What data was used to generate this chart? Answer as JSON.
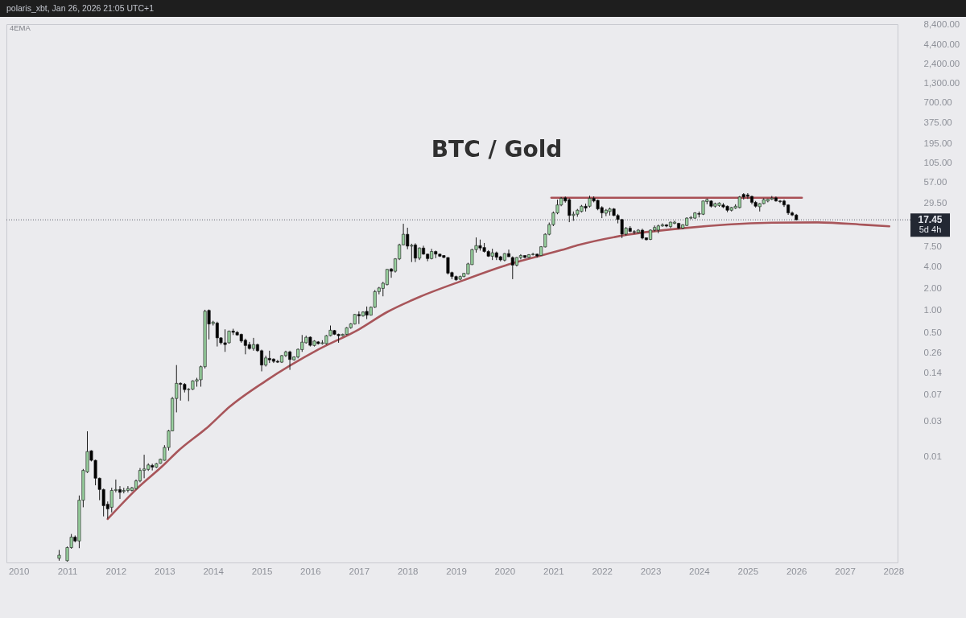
{
  "chart_data": {
    "type": "candlestick",
    "title": "BTC / Gold",
    "annotations": [
      "polaris_xbt, Jan 26, 2026 21:05 UTC+1",
      "4EMA",
      "5d 4h"
    ],
    "x": [
      "2010-11",
      "2011-01",
      "2011-02",
      "2011-03",
      "2011-04",
      "2011-05",
      "2011-06",
      "2011-07",
      "2011-08",
      "2011-09",
      "2011-10",
      "2011-11",
      "2011-12",
      "2012-01",
      "2012-02",
      "2012-03",
      "2012-04",
      "2012-05",
      "2012-06",
      "2012-07",
      "2012-08",
      "2012-09",
      "2012-10",
      "2012-11",
      "2012-12",
      "2013-01",
      "2013-02",
      "2013-03",
      "2013-04",
      "2013-05",
      "2013-06",
      "2013-07",
      "2013-08",
      "2013-09",
      "2013-10",
      "2013-11",
      "2013-12",
      "2014-01",
      "2014-02",
      "2014-03",
      "2014-04",
      "2014-05",
      "2014-06",
      "2014-07",
      "2014-08",
      "2014-09",
      "2014-10",
      "2014-11",
      "2014-12",
      "2015-01",
      "2015-02",
      "2015-03",
      "2015-04",
      "2015-05",
      "2015-06",
      "2015-07",
      "2015-08",
      "2015-09",
      "2015-10",
      "2015-11",
      "2015-12",
      "2016-01",
      "2016-02",
      "2016-03",
      "2016-04",
      "2016-05",
      "2016-06",
      "2016-07",
      "2016-08",
      "2016-09",
      "2016-10",
      "2016-11",
      "2016-12",
      "2017-01",
      "2017-02",
      "2017-03",
      "2017-04",
      "2017-05",
      "2017-06",
      "2017-07",
      "2017-08",
      "2017-09",
      "2017-10",
      "2017-11",
      "2017-12",
      "2018-01",
      "2018-02",
      "2018-03",
      "2018-04",
      "2018-05",
      "2018-06",
      "2018-07",
      "2018-08",
      "2018-09",
      "2018-10",
      "2018-11",
      "2018-12",
      "2019-01",
      "2019-02",
      "2019-03",
      "2019-04",
      "2019-05",
      "2019-06",
      "2019-07",
      "2019-08",
      "2019-09",
      "2019-10",
      "2019-11",
      "2019-12",
      "2020-01",
      "2020-02",
      "2020-03",
      "2020-04",
      "2020-05",
      "2020-06",
      "2020-07",
      "2020-08",
      "2020-09",
      "2020-10",
      "2020-11",
      "2020-12",
      "2021-01",
      "2021-02",
      "2021-03",
      "2021-04",
      "2021-05",
      "2021-06",
      "2021-07",
      "2021-08",
      "2021-09",
      "2021-10",
      "2021-11",
      "2021-12",
      "2022-01",
      "2022-02",
      "2022-03",
      "2022-04",
      "2022-05",
      "2022-06",
      "2022-07",
      "2022-08",
      "2022-09",
      "2022-10",
      "2022-11",
      "2022-12",
      "2023-01",
      "2023-02",
      "2023-03",
      "2023-04",
      "2023-05",
      "2023-06",
      "2023-07",
      "2023-08",
      "2023-09",
      "2023-10",
      "2023-11",
      "2023-12",
      "2024-01",
      "2024-02",
      "2024-03",
      "2024-04",
      "2024-05",
      "2024-06",
      "2024-07",
      "2024-08",
      "2024-09",
      "2024-10",
      "2024-11",
      "2024-12",
      "2025-01",
      "2025-02",
      "2025-03",
      "2025-04",
      "2025-05",
      "2025-06",
      "2025-07",
      "2025-08",
      "2025-09",
      "2025-10",
      "2025-11",
      "2025-12",
      "2026-01"
    ],
    "ohlc": [
      [
        0.0004,
        0.00052,
        0.00037,
        0.00044
      ],
      [
        0.00037,
        0.00058,
        0.00036,
        0.00056
      ],
      [
        0.00056,
        0.00086,
        0.00054,
        0.00078
      ],
      [
        0.00078,
        0.00082,
        0.00066,
        0.00069
      ],
      [
        0.00069,
        0.0029,
        0.00055,
        0.0025
      ],
      [
        0.0025,
        0.0067,
        0.002,
        0.0064
      ],
      [
        0.0061,
        0.022,
        0.0059,
        0.0116
      ],
      [
        0.0119,
        0.0121,
        0.0085,
        0.0088
      ],
      [
        0.0088,
        0.009,
        0.004,
        0.005
      ],
      [
        0.005,
        0.0051,
        0.0025,
        0.0035
      ],
      [
        0.0035,
        0.0036,
        0.0015,
        0.0021
      ],
      [
        0.0022,
        0.0024,
        0.0014,
        0.0019
      ],
      [
        0.002,
        0.0037,
        0.0017,
        0.0034
      ],
      [
        0.0034,
        0.0048,
        0.0032,
        0.0035
      ],
      [
        0.0035,
        0.0039,
        0.0026,
        0.0032
      ],
      [
        0.0033,
        0.0037,
        0.0031,
        0.0034
      ],
      [
        0.0034,
        0.0039,
        0.0032,
        0.0036
      ],
      [
        0.0034,
        0.0038,
        0.0033,
        0.0037
      ],
      [
        0.0036,
        0.0048,
        0.0035,
        0.0046
      ],
      [
        0.0046,
        0.0069,
        0.0044,
        0.0064
      ],
      [
        0.0064,
        0.0105,
        0.005,
        0.0067
      ],
      [
        0.0066,
        0.008,
        0.0063,
        0.0076
      ],
      [
        0.0075,
        0.0079,
        0.0064,
        0.0071
      ],
      [
        0.0071,
        0.0081,
        0.0069,
        0.0079
      ],
      [
        0.008,
        0.0093,
        0.0079,
        0.0091
      ],
      [
        0.0088,
        0.0142,
        0.0087,
        0.0132
      ],
      [
        0.0132,
        0.023,
        0.012,
        0.0223
      ],
      [
        0.0223,
        0.065,
        0.022,
        0.062
      ],
      [
        0.062,
        0.178,
        0.04,
        0.1
      ],
      [
        0.1,
        0.103,
        0.058,
        0.097
      ],
      [
        0.097,
        0.101,
        0.075,
        0.082
      ],
      [
        0.082,
        0.086,
        0.057,
        0.083
      ],
      [
        0.083,
        0.11,
        0.081,
        0.108
      ],
      [
        0.107,
        0.119,
        0.09,
        0.112
      ],
      [
        0.112,
        0.175,
        0.09,
        0.169
      ],
      [
        0.169,
        1.02,
        0.16,
        0.975
      ],
      [
        1.0,
        1.03,
        0.4,
        0.65
      ],
      [
        0.66,
        0.72,
        0.62,
        0.69
      ],
      [
        0.67,
        0.7,
        0.32,
        0.42
      ],
      [
        0.42,
        0.43,
        0.34,
        0.36
      ],
      [
        0.36,
        0.55,
        0.27,
        0.34
      ],
      [
        0.36,
        0.53,
        0.35,
        0.52
      ],
      [
        0.52,
        0.56,
        0.46,
        0.5
      ],
      [
        0.5,
        0.52,
        0.45,
        0.46
      ],
      [
        0.47,
        0.48,
        0.36,
        0.38
      ],
      [
        0.39,
        0.41,
        0.25,
        0.33
      ],
      [
        0.34,
        0.37,
        0.29,
        0.3
      ],
      [
        0.3,
        0.42,
        0.28,
        0.34
      ],
      [
        0.34,
        0.35,
        0.27,
        0.28
      ],
      [
        0.28,
        0.29,
        0.146,
        0.178
      ],
      [
        0.178,
        0.24,
        0.17,
        0.223
      ],
      [
        0.22,
        0.28,
        0.19,
        0.21
      ],
      [
        0.215,
        0.22,
        0.19,
        0.2
      ],
      [
        0.2,
        0.21,
        0.19,
        0.195
      ],
      [
        0.195,
        0.245,
        0.19,
        0.24
      ],
      [
        0.24,
        0.28,
        0.23,
        0.27
      ],
      [
        0.27,
        0.28,
        0.153,
        0.212
      ],
      [
        0.21,
        0.235,
        0.205,
        0.23
      ],
      [
        0.23,
        0.3,
        0.22,
        0.293
      ],
      [
        0.29,
        0.46,
        0.27,
        0.367
      ],
      [
        0.36,
        0.45,
        0.35,
        0.427
      ],
      [
        0.43,
        0.44,
        0.32,
        0.332
      ],
      [
        0.33,
        0.39,
        0.32,
        0.38
      ],
      [
        0.37,
        0.38,
        0.34,
        0.35
      ],
      [
        0.35,
        0.39,
        0.34,
        0.36
      ],
      [
        0.35,
        0.46,
        0.34,
        0.449
      ],
      [
        0.45,
        0.62,
        0.44,
        0.535
      ],
      [
        0.53,
        0.54,
        0.46,
        0.47
      ],
      [
        0.47,
        0.48,
        0.36,
        0.45
      ],
      [
        0.45,
        0.48,
        0.44,
        0.47
      ],
      [
        0.47,
        0.59,
        0.46,
        0.577
      ],
      [
        0.58,
        0.67,
        0.56,
        0.653
      ],
      [
        0.65,
        0.89,
        0.64,
        0.882
      ],
      [
        0.88,
        0.97,
        0.65,
        0.84
      ],
      [
        0.84,
        0.97,
        0.82,
        0.95
      ],
      [
        0.97,
        1.13,
        0.76,
        0.86
      ],
      [
        0.86,
        1.13,
        0.85,
        1.105
      ],
      [
        1.105,
        1.9,
        1.08,
        1.81
      ],
      [
        1.81,
        2.1,
        1.66,
        2.03
      ],
      [
        2.0,
        2.46,
        1.56,
        2.36
      ],
      [
        2.26,
        3.7,
        2.2,
        3.65
      ],
      [
        3.7,
        3.8,
        2.8,
        3.44
      ],
      [
        3.44,
        5.2,
        3.3,
        5.09
      ],
      [
        5.09,
        8.2,
        4.9,
        7.92
      ],
      [
        7.92,
        15.4,
        7.8,
        11.05
      ],
      [
        11.05,
        13.6,
        6.9,
        7.6
      ],
      [
        7.6,
        8.2,
        4.6,
        7.8
      ],
      [
        7.9,
        8.3,
        4.6,
        5.2
      ],
      [
        5.2,
        7.3,
        4.9,
        7.16
      ],
      [
        7.16,
        7.7,
        5.8,
        5.91
      ],
      [
        5.91,
        6.0,
        4.72,
        5.13
      ],
      [
        5.13,
        6.99,
        5.0,
        6.42
      ],
      [
        6.42,
        6.6,
        5.2,
        5.91
      ],
      [
        5.91,
        6.0,
        5.4,
        5.53
      ],
      [
        5.66,
        5.7,
        5.2,
        5.31
      ],
      [
        5.31,
        5.35,
        3.1,
        3.24
      ],
      [
        3.3,
        3.4,
        2.68,
        2.91
      ],
      [
        2.91,
        3.0,
        2.55,
        2.63
      ],
      [
        2.68,
        3.0,
        2.6,
        2.91
      ],
      [
        2.91,
        3.25,
        2.85,
        3.22
      ],
      [
        3.16,
        4.5,
        3.1,
        4.34
      ],
      [
        4.24,
        6.99,
        4.2,
        6.81
      ],
      [
        6.81,
        10.0,
        6.2,
        7.73
      ],
      [
        7.73,
        9.35,
        6.6,
        7.16
      ],
      [
        7.28,
        8.4,
        6.2,
        6.42
      ],
      [
        6.42,
        6.7,
        5.4,
        5.53
      ],
      [
        5.53,
        7.0,
        4.9,
        6.16
      ],
      [
        6.16,
        6.4,
        4.9,
        5.35
      ],
      [
        5.44,
        5.6,
        4.7,
        4.92
      ],
      [
        4.88,
        6.1,
        4.7,
        6.01
      ],
      [
        6.01,
        6.81,
        5.4,
        5.44
      ],
      [
        5.31,
        5.5,
        2.68,
        4.17
      ],
      [
        4.17,
        5.4,
        4.0,
        5.31
      ],
      [
        5.31,
        5.9,
        5.0,
        5.66
      ],
      [
        5.66,
        5.7,
        5.2,
        5.31
      ],
      [
        5.31,
        5.9,
        5.2,
        5.81
      ],
      [
        5.81,
        6.16,
        5.66,
        5.91
      ],
      [
        5.91,
        6.0,
        5.3,
        5.57
      ],
      [
        5.66,
        7.6,
        5.6,
        7.46
      ],
      [
        7.41,
        11.4,
        7.3,
        11.05
      ],
      [
        11.05,
        16.0,
        10.7,
        15.0
      ],
      [
        15.0,
        22.7,
        14.3,
        21.7
      ],
      [
        21.7,
        33.0,
        20.8,
        27.9
      ],
      [
        27.9,
        35.8,
        26.8,
        34.4
      ],
      [
        34.9,
        36.4,
        30.0,
        31.6
      ],
      [
        33.0,
        34.4,
        16.2,
        20.0
      ],
      [
        20.0,
        22.7,
        16.9,
        20.8
      ],
      [
        20.8,
        24.6,
        19.2,
        23.6
      ],
      [
        22.7,
        27.9,
        22.0,
        26.8
      ],
      [
        26.8,
        29.1,
        22.7,
        25.3
      ],
      [
        26.8,
        37.4,
        25.7,
        34.4
      ],
      [
        34.4,
        36.6,
        30.3,
        31.6
      ],
      [
        32.3,
        33.0,
        23.6,
        24.6
      ],
      [
        25.7,
        26.8,
        18.4,
        21.7
      ],
      [
        21.5,
        24.6,
        19.6,
        23.6
      ],
      [
        22.7,
        25.7,
        20.0,
        24.6
      ],
      [
        24.6,
        25.3,
        19.6,
        20.0
      ],
      [
        20.0,
        21.0,
        15.6,
        17.6
      ],
      [
        17.6,
        18.0,
        9.8,
        11.1
      ],
      [
        11.1,
        13.9,
        10.6,
        13.4
      ],
      [
        13.4,
        14.3,
        11.8,
        12.1
      ],
      [
        12.0,
        12.6,
        11.1,
        11.9
      ],
      [
        11.7,
        13.0,
        11.4,
        12.6
      ],
      [
        12.6,
        13.2,
        9.4,
        9.8
      ],
      [
        9.9,
        10.0,
        9.1,
        9.3
      ],
      [
        9.4,
        12.9,
        9.2,
        12.6
      ],
      [
        12.6,
        14.6,
        12.1,
        13.7
      ],
      [
        12.6,
        15.0,
        11.4,
        14.4
      ],
      [
        14.4,
        15.6,
        14.0,
        14.9
      ],
      [
        14.9,
        15.2,
        13.8,
        14.3
      ],
      [
        14.1,
        16.5,
        13.4,
        16.2
      ],
      [
        15.6,
        16.9,
        15.2,
        16.2
      ],
      [
        15.6,
        15.9,
        13.0,
        13.4
      ],
      [
        13.4,
        15.2,
        13.0,
        14.9
      ],
      [
        14.6,
        18.9,
        14.3,
        18.4
      ],
      [
        18.4,
        19.6,
        17.8,
        18.8
      ],
      [
        18.4,
        22.2,
        18.0,
        21.7
      ],
      [
        21.3,
        22.7,
        18.8,
        20.8
      ],
      [
        20.8,
        31.8,
        20.3,
        31.6
      ],
      [
        31.0,
        34.0,
        28.5,
        33.0
      ],
      [
        31.6,
        32.3,
        25.7,
        26.8
      ],
      [
        26.8,
        30.0,
        25.7,
        29.1
      ],
      [
        27.4,
        30.3,
        26.3,
        29.6
      ],
      [
        27.9,
        29.6,
        25.2,
        26.2
      ],
      [
        26.8,
        27.4,
        22.2,
        23.6
      ],
      [
        23.6,
        26.2,
        22.7,
        25.7
      ],
      [
        25.3,
        28.5,
        24.6,
        26.8
      ],
      [
        25.7,
        37.0,
        25.0,
        35.8
      ],
      [
        38.9,
        40.5,
        33.0,
        35.8
      ],
      [
        38.3,
        40.5,
        33.7,
        36.6
      ],
      [
        36.6,
        37.4,
        28.5,
        30.3
      ],
      [
        30.3,
        31.6,
        25.7,
        26.8
      ],
      [
        26.4,
        29.6,
        22.7,
        29.1
      ],
      [
        29.1,
        34.4,
        28.5,
        33.0
      ],
      [
        31.6,
        34.0,
        30.3,
        33.4
      ],
      [
        33.4,
        37.0,
        32.6,
        34.6
      ],
      [
        34.9,
        36.4,
        31.0,
        31.6
      ],
      [
        31.6,
        32.6,
        29.6,
        31.0
      ],
      [
        31.6,
        33.0,
        26.2,
        27.9
      ],
      [
        27.9,
        28.5,
        20.4,
        21.7
      ],
      [
        21.7,
        22.7,
        19.6,
        20.3
      ],
      [
        20.3,
        21.0,
        17.3,
        17.45
      ]
    ],
    "colors": [
      "#98d09e",
      "#98d09e",
      "#98d09e",
      "#000000",
      "#98d09e",
      "#98d09e",
      "#98d09e",
      "#000000",
      "#000000",
      "#000000",
      "#000000",
      "#000000",
      "#98d09e",
      "#98d09e",
      "#000000",
      "#98d09e",
      "#98d09e",
      "#98d09e",
      "#98d09e",
      "#98d09e",
      "#98d09e",
      "#98d09e",
      "#000000",
      "#98d09e",
      "#98d09e",
      "#98d09e",
      "#98d09e",
      "#98d09e",
      "#98d09e",
      "#000000",
      "#000000",
      "#98d09e",
      "#98d09e",
      "#98d09e",
      "#98d09e",
      "#98d09e",
      "#000000",
      "#98d09e",
      "#000000",
      "#000000",
      "#000000",
      "#98d09e",
      "#000000",
      "#000000",
      "#000000",
      "#000000",
      "#000000",
      "#98d09e",
      "#000000",
      "#000000",
      "#98d09e",
      "#000000",
      "#000000",
      "#000000",
      "#98d09e",
      "#98d09e",
      "#000000",
      "#98d09e",
      "#98d09e",
      "#98d09e",
      "#98d09e",
      "#000000",
      "#98d09e",
      "#000000",
      "#98d09e",
      "#98d09e",
      "#98d09e",
      "#000000",
      "#000000",
      "#98d09e",
      "#98d09e",
      "#98d09e",
      "#98d09e",
      "#000000",
      "#98d09e",
      "#000000",
      "#98d09e",
      "#98d09e",
      "#98d09e",
      "#98d09e",
      "#98d09e",
      "#000000",
      "#98d09e",
      "#98d09e",
      "#98d09e",
      "#000000",
      "#98d09e",
      "#000000",
      "#98d09e",
      "#000000",
      "#000000",
      "#98d09e",
      "#000000",
      "#000000",
      "#000000",
      "#000000",
      "#000000",
      "#000000",
      "#98d09e",
      "#98d09e",
      "#98d09e",
      "#98d09e",
      "#98d09e",
      "#000000",
      "#000000",
      "#000000",
      "#98d09e",
      "#000000",
      "#000000",
      "#98d09e",
      "#000000",
      "#000000",
      "#98d09e",
      "#98d09e",
      "#000000",
      "#98d09e",
      "#98d09e",
      "#000000",
      "#98d09e",
      "#98d09e",
      "#98d09e",
      "#98d09e",
      "#98d09e",
      "#98d09e",
      "#000000",
      "#000000",
      "#98d09e",
      "#98d09e",
      "#98d09e",
      "#000000",
      "#98d09e",
      "#000000",
      "#000000",
      "#000000",
      "#98d09e",
      "#98d09e",
      "#000000",
      "#000000",
      "#000000",
      "#98d09e",
      "#000000",
      "#000000",
      "#98d09e",
      "#000000",
      "#000000",
      "#98d09e",
      "#98d09e",
      "#98d09e",
      "#98d09e",
      "#000000",
      "#98d09e",
      "#98d09e",
      "#000000",
      "#98d09e",
      "#98d09e",
      "#98d09e",
      "#98d09e",
      "#000000",
      "#98d09e",
      "#98d09e",
      "#000000",
      "#98d09e",
      "#98d09e",
      "#000000",
      "#000000",
      "#98d09e",
      "#98d09e",
      "#98d09e",
      "#000000",
      "#000000",
      "#000000",
      "#000000",
      "#98d09e",
      "#98d09e",
      "#98d09e",
      "#98d09e",
      "#000000",
      "#000000",
      "#000000",
      "#000000",
      "#000000",
      "#000000"
    ],
    "series": [
      {
        "type": "line",
        "color": "#a8555a",
        "x": [
          "2011-11",
          "2012-06",
          "2013-01",
          "2013-04",
          "2013-12",
          "2014-05",
          "2015-02",
          "2016-03",
          "2017-01",
          "2017-08",
          "2018-04",
          "2019-03",
          "2020-02",
          "2021-03",
          "2021-07",
          "2022-07",
          "2023-08",
          "2025-07",
          "2026-06",
          "2027-06",
          "2027-12"
        ],
        "values": [
          0.00138,
          0.0035,
          0.0078,
          0.0113,
          0.026,
          0.047,
          0.108,
          0.29,
          0.55,
          0.95,
          1.53,
          2.6,
          4.27,
          6.7,
          7.8,
          10.8,
          13.2,
          15.9,
          16.1,
          14.9,
          14.2
        ]
      },
      {
        "type": "line",
        "color": "#a94f55",
        "x": [
          "2020-12-17",
          "2026-02-12"
        ],
        "values": [
          35,
          35
        ]
      }
    ],
    "xlim": [
      "2009-10",
      "2028-02"
    ],
    "xticks": [
      "2010",
      "2011",
      "2012",
      "2013",
      "2014",
      "2015",
      "2016",
      "2017",
      "2018",
      "2019",
      "2020",
      "2021",
      "2022",
      "2023",
      "2024",
      "2025",
      "2026",
      "2027",
      "2028"
    ],
    "ylim": [
      0.00035,
      8400
    ],
    "yticks": [
      0.01,
      0.03,
      0.07,
      0.14,
      0.26,
      {
        "value": 0.5,
        "label": "0.50"
      },
      {
        "value": 1,
        "label": "1.00"
      },
      {
        "value": 2,
        "label": "2.00"
      },
      {
        "value": 4,
        "label": "4.00"
      },
      {
        "value": 7.5,
        "label": "7.50"
      },
      {
        "value": 29.5,
        "label": "29.50"
      },
      {
        "value": 57,
        "label": "57.00"
      },
      {
        "value": 105,
        "label": "105.00"
      },
      {
        "value": 195,
        "label": "195.00"
      },
      {
        "value": 375,
        "label": "375.00"
      },
      {
        "value": 700,
        "label": "700.00"
      },
      {
        "value": 1300,
        "label": "1,300.00"
      },
      {
        "value": 2400,
        "label": "2,400.00"
      },
      {
        "value": 4400,
        "label": "4,400.00"
      },
      {
        "value": 8400,
        "label": "8,400.00"
      }
    ],
    "log": true,
    "ref_lines": [
      {
        "axis": "y",
        "value": 17.45,
        "label": "17.45",
        "line_style": "dotted",
        "color": "#5f626c"
      }
    ]
  }
}
